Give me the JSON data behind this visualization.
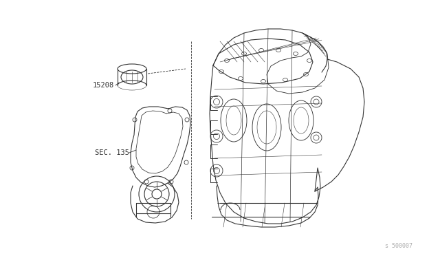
{
  "background_color": "#ffffff",
  "line_color": "#333333",
  "label_15208": "15208",
  "label_sec135": "SEC. 135",
  "watermark": "s 500007",
  "fig_width": 6.4,
  "fig_height": 3.72,
  "dpi": 100
}
